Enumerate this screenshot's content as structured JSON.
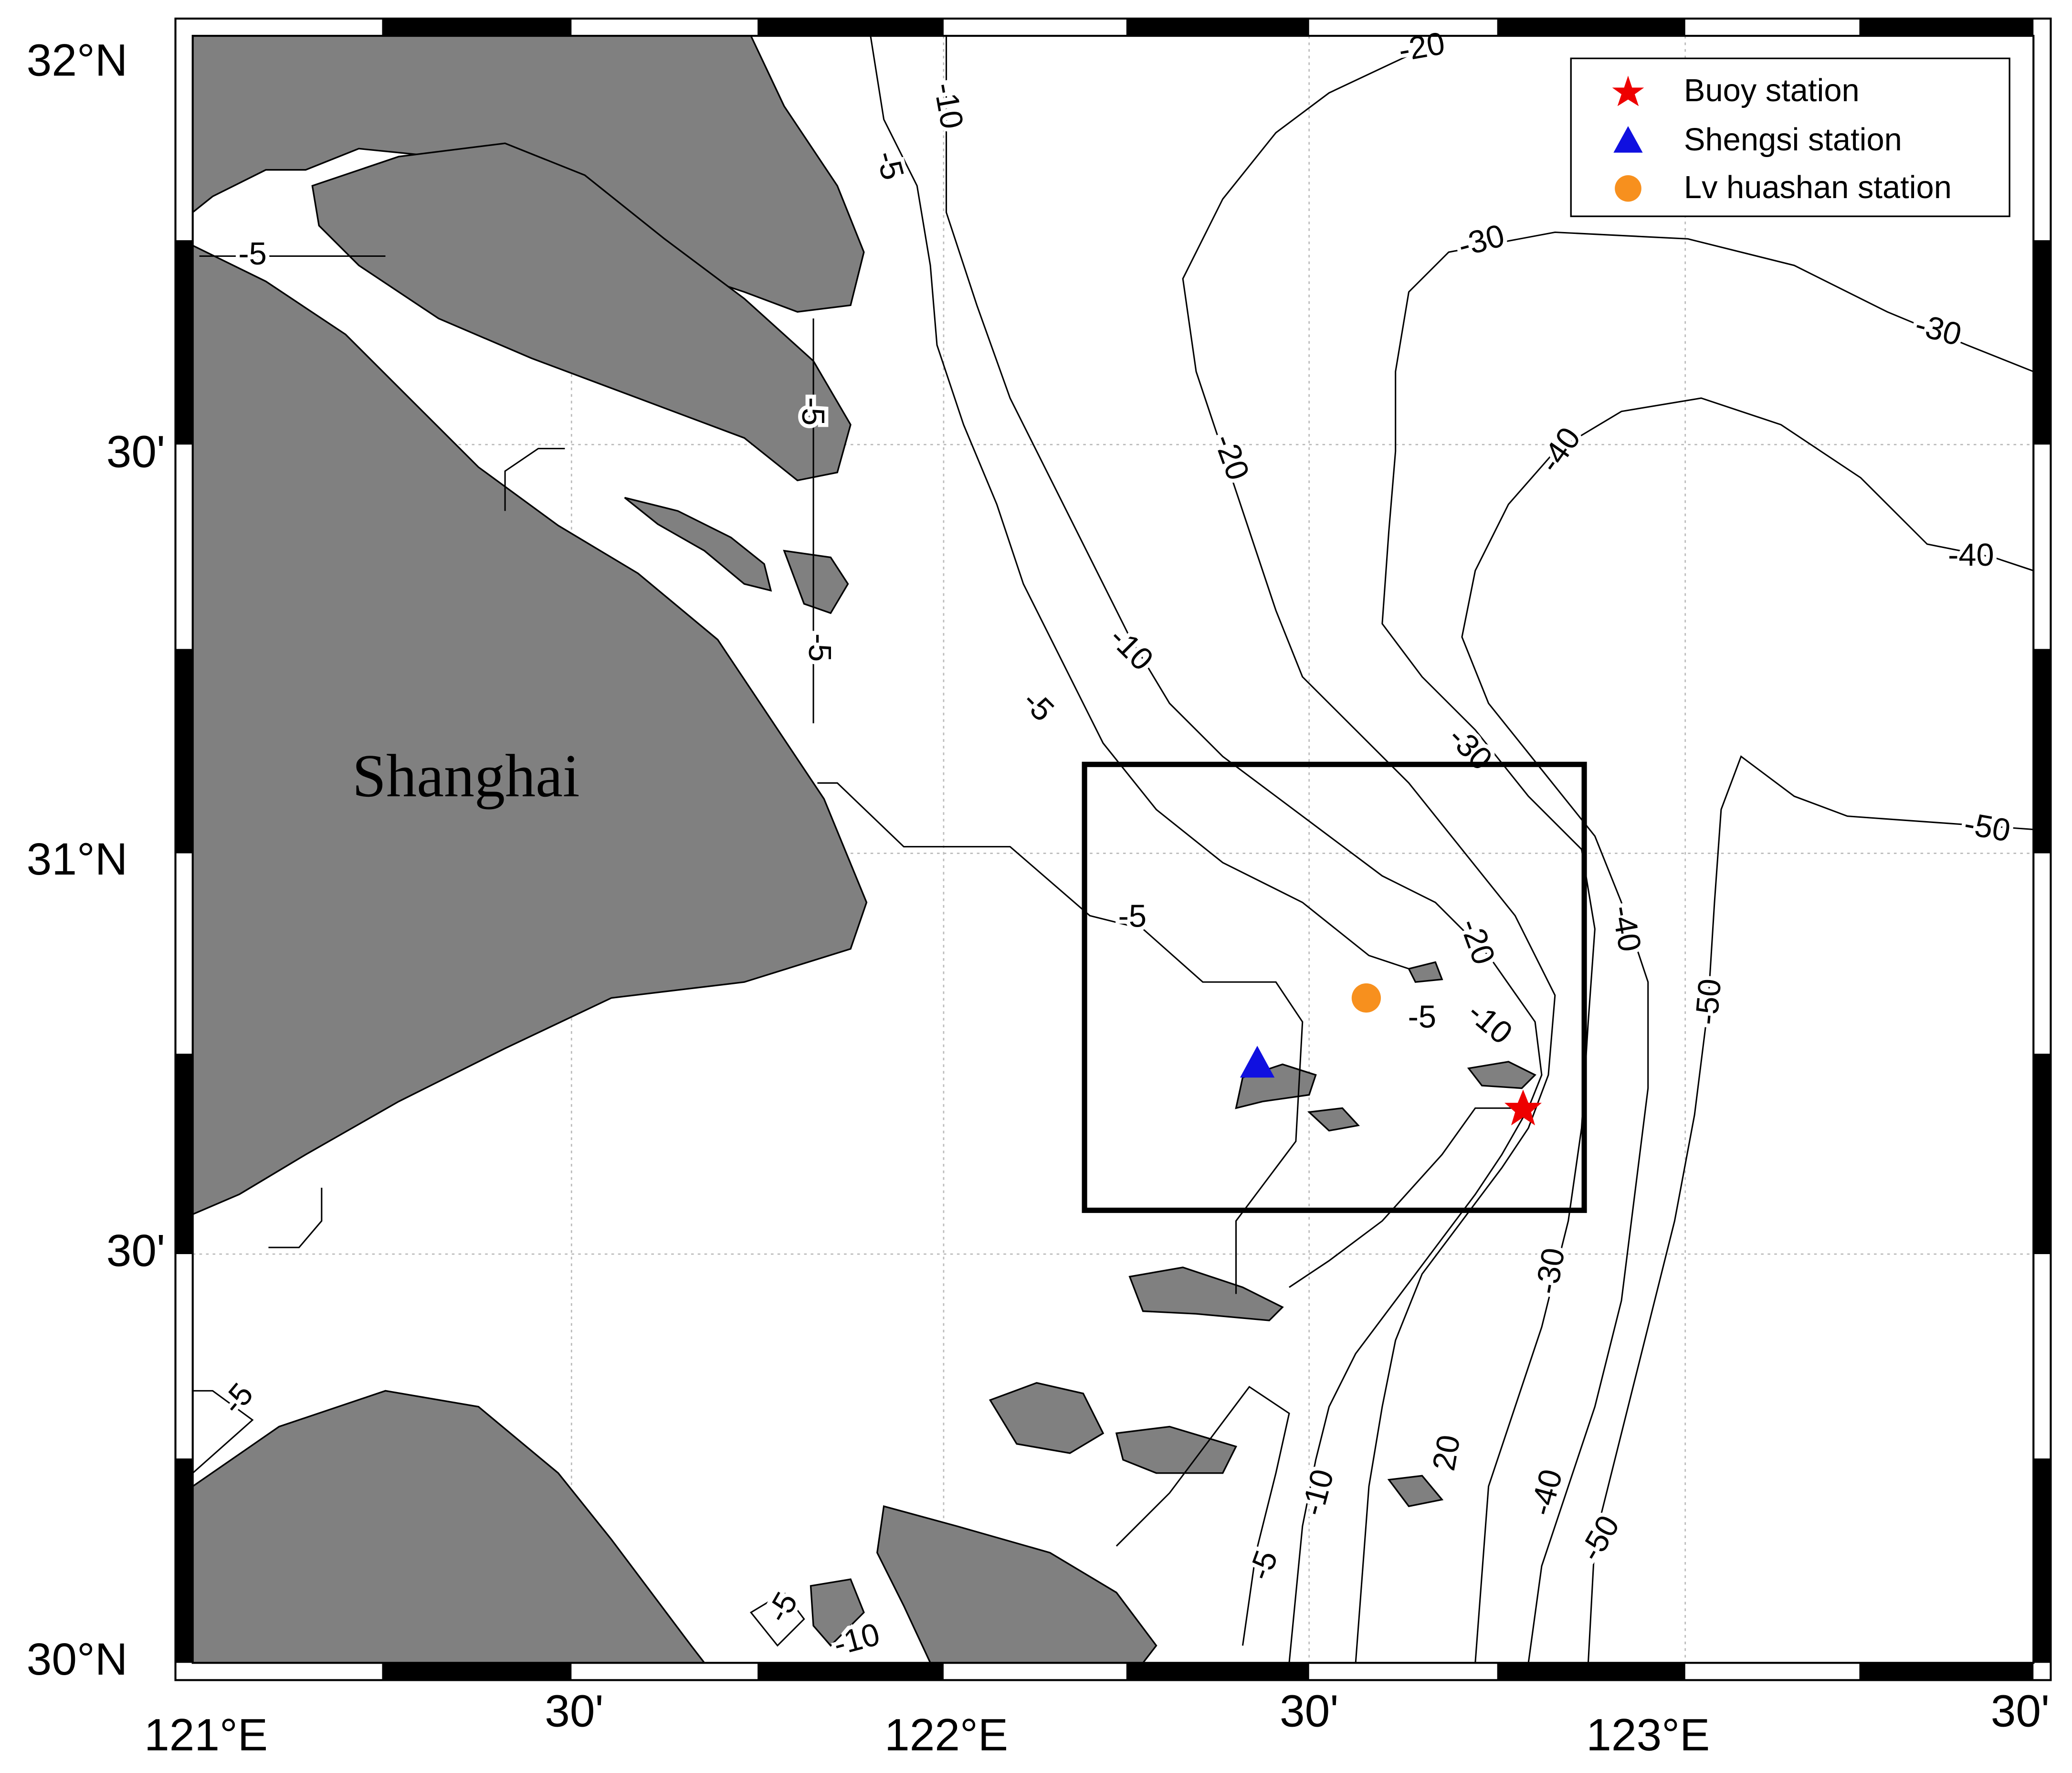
{
  "map": {
    "lat_labels": [
      "32°N",
      "30'",
      "31°N",
      "30'",
      "30°N"
    ],
    "lon_labels": [
      "121°E",
      "30'",
      "122°E",
      "30'",
      "123°E",
      "30'"
    ],
    "place_label": "Shanghai",
    "legend": [
      "Buoy station",
      "Shengsi station",
      "Lv huashan station"
    ],
    "contour_labels": [
      -20,
      -10,
      -5,
      -5,
      -5,
      -5,
      -20,
      -30,
      -30,
      -40,
      -40,
      -10,
      -5,
      -30,
      -50,
      -5,
      -20,
      -40,
      -50,
      -5,
      -10,
      -30,
      20,
      -10,
      -40,
      -50,
      -5,
      -5,
      -5,
      -10
    ]
  }
}
